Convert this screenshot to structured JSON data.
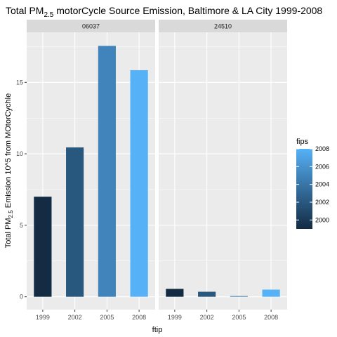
{
  "chart_data": {
    "type": "bar",
    "title": {
      "prefix": "Total PM",
      "subscript": "2.5",
      "suffix": " motorCycle Source Emission, Baltimore & LA City 1999-2008"
    },
    "ylabel": {
      "prefix": "Total PM",
      "subscript": "2.5",
      "suffix": " Emission 10^5 from MOtorCychle"
    },
    "xlabel": "ftip",
    "categories": [
      "1999",
      "2002",
      "2005",
      "2008"
    ],
    "panels": [
      {
        "name": "06037",
        "values": [
          7.0,
          10.45,
          17.55,
          15.85
        ]
      },
      {
        "name": "24510",
        "values": [
          0.55,
          0.35,
          0.05,
          0.5
        ]
      }
    ],
    "ylim": [
      -0.9,
      18.5
    ],
    "yticks": [
      0,
      5,
      10,
      15
    ],
    "ytick_labels": [
      "0",
      "5",
      "10",
      "15"
    ],
    "grid": true,
    "legend": {
      "title": "fips",
      "position": "right",
      "range": [
        1999,
        2008
      ],
      "breaks": [
        2000,
        2002,
        2004,
        2006,
        2008
      ],
      "labels": [
        "2000",
        "2002",
        "2004",
        "2006",
        "2008"
      ],
      "color_low": "#132B43",
      "color_high": "#56B1F7"
    },
    "colors": {
      "panel_background": "#EBEBEB",
      "strip_background": "#D9D9D9",
      "grid": "#FFFFFF"
    }
  }
}
